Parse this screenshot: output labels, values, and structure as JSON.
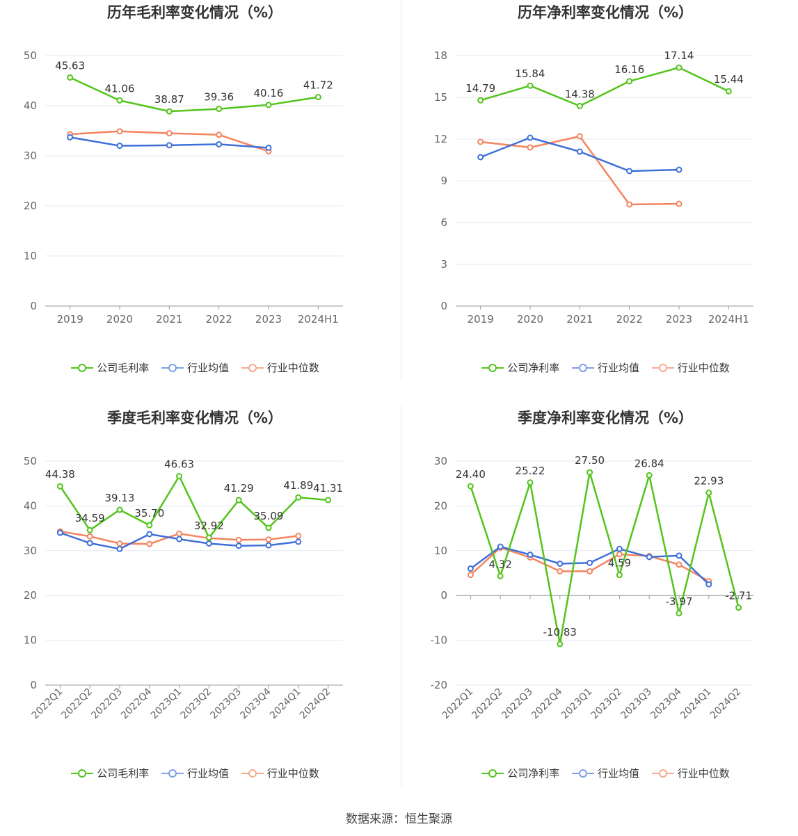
{
  "colors": {
    "company": "#52c41a",
    "industry_avg": "#3e6fd9",
    "industry_median": "#f4845f",
    "grid": "#e6e9f0",
    "axis": "#666666"
  },
  "legend": {
    "company_gross": "公司毛利率",
    "company_net": "公司净利率",
    "industry_avg": "行业均值",
    "industry_median": "行业中位数"
  },
  "source": "数据来源：恒生聚源",
  "chart_data": [
    {
      "type": "line",
      "title": "历年毛利率变化情况（%）",
      "categories": [
        "2019",
        "2020",
        "2021",
        "2022",
        "2023",
        "2024H1"
      ],
      "ylim": [
        0,
        50
      ],
      "yticks": [
        0,
        10,
        20,
        30,
        40,
        50
      ],
      "series": [
        {
          "name": "公司毛利率",
          "values": [
            45.63,
            41.06,
            38.87,
            39.36,
            40.16,
            41.72
          ],
          "labels": [
            "45.63",
            "41.06",
            "38.87",
            "39.36",
            "40.16",
            "41.72"
          ]
        },
        {
          "name": "行业均值",
          "values": [
            33.7,
            32.0,
            32.1,
            32.3,
            31.6,
            null
          ]
        },
        {
          "name": "行业中位数",
          "values": [
            34.3,
            34.9,
            34.5,
            34.2,
            30.9,
            null
          ]
        }
      ],
      "grid": true,
      "legend": "bottom"
    },
    {
      "type": "line",
      "title": "历年净利率变化情况（%）",
      "categories": [
        "2019",
        "2020",
        "2021",
        "2022",
        "2023",
        "2024H1"
      ],
      "ylim": [
        0,
        18
      ],
      "yticks": [
        0,
        3,
        6,
        9,
        12,
        15,
        18
      ],
      "series": [
        {
          "name": "公司净利率",
          "values": [
            14.79,
            15.84,
            14.38,
            16.16,
            17.14,
            15.44
          ],
          "labels": [
            "14.79",
            "15.84",
            "14.38",
            "16.16",
            "17.14",
            "15.44"
          ]
        },
        {
          "name": "行业均值",
          "values": [
            10.7,
            12.1,
            11.1,
            9.7,
            9.8,
            null
          ]
        },
        {
          "name": "行业中位数",
          "values": [
            11.8,
            11.4,
            12.2,
            7.3,
            7.35,
            null
          ]
        }
      ],
      "grid": true,
      "legend": "bottom"
    },
    {
      "type": "line",
      "title": "季度毛利率变化情况（%）",
      "categories": [
        "2022Q1",
        "2022Q2",
        "2022Q3",
        "2022Q4",
        "2023Q1",
        "2023Q2",
        "2023Q3",
        "2023Q4",
        "2024Q1",
        "2024Q2"
      ],
      "ylim": [
        0,
        50
      ],
      "yticks": [
        0,
        10,
        20,
        30,
        40,
        50
      ],
      "series": [
        {
          "name": "公司毛利率",
          "values": [
            44.38,
            34.59,
            39.13,
            35.7,
            46.63,
            32.92,
            41.29,
            35.09,
            41.89,
            41.31
          ],
          "labels": [
            "44.38",
            "34.59",
            "39.13",
            "35.70",
            "46.63",
            "32.92",
            "41.29",
            "35.09",
            "41.89",
            "41.31"
          ]
        },
        {
          "name": "行业均值",
          "values": [
            34.0,
            31.7,
            30.4,
            33.7,
            32.6,
            31.6,
            31.1,
            31.2,
            32.0,
            null
          ]
        },
        {
          "name": "行业中位数",
          "values": [
            34.3,
            33.2,
            31.6,
            31.5,
            33.8,
            32.8,
            32.4,
            32.5,
            33.3,
            null
          ]
        }
      ],
      "grid": true,
      "legend": "bottom"
    },
    {
      "type": "line",
      "title": "季度净利率变化情况（%）",
      "categories": [
        "2022Q1",
        "2022Q2",
        "2022Q3",
        "2022Q4",
        "2023Q1",
        "2023Q2",
        "2023Q3",
        "2023Q4",
        "2024Q1",
        "2024Q2"
      ],
      "ylim": [
        -20,
        30
      ],
      "yticks": [
        -20,
        -10,
        0,
        10,
        20,
        30
      ],
      "series": [
        {
          "name": "公司净利率",
          "values": [
            24.4,
            4.32,
            25.22,
            -10.83,
            27.5,
            4.59,
            26.84,
            -3.97,
            22.93,
            -2.71
          ],
          "labels": [
            "24.40",
            "4.32",
            "25.22",
            "-10.83",
            "27.50",
            "4.59",
            "26.84",
            "-3.97",
            "22.93",
            "-2.71"
          ]
        },
        {
          "name": "行业均值",
          "values": [
            6.0,
            10.9,
            9.1,
            7.1,
            7.3,
            10.4,
            8.6,
            8.9,
            2.5,
            null
          ]
        },
        {
          "name": "行业中位数",
          "values": [
            4.6,
            10.7,
            8.5,
            5.4,
            5.4,
            9.2,
            8.8,
            6.9,
            3.2,
            null
          ]
        }
      ],
      "grid": true,
      "legend": "bottom"
    }
  ]
}
